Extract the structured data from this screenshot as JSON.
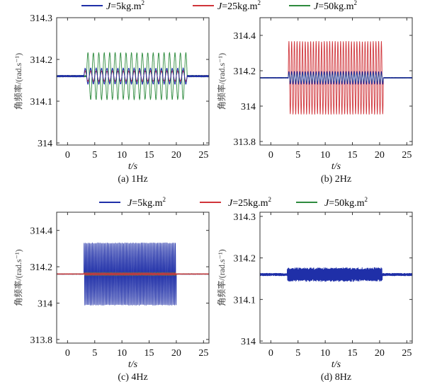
{
  "legend": {
    "entries": [
      {
        "prefix": "J",
        "label": "=5kg.m",
        "sup": "2",
        "color": "#1f2fa8"
      },
      {
        "prefix": "J",
        "label": "=25kg.m",
        "sup": "2",
        "color": "#d0343a"
      },
      {
        "prefix": "J",
        "label": "=50kg.m",
        "sup": "2",
        "color": "#2e8b3e"
      }
    ]
  },
  "chart_data": [
    {
      "type": "line",
      "caption": "(a) 1Hz",
      "xlabel": "t/s",
      "ylabel": "角频率/(rad.s⁻¹)",
      "xlim": [
        -2,
        26
      ],
      "ylim": [
        313.995,
        314.3
      ],
      "xticks": [
        0,
        5,
        10,
        15,
        20,
        25
      ],
      "yticks": [
        314,
        314.1,
        314.2,
        314.3
      ],
      "ytick_labels": [
        "314",
        "314.1",
        "314.2",
        "314.3"
      ],
      "grid": false,
      "series": [
        {
          "color": "#2e8b3e",
          "start": 3.5,
          "end": 22,
          "center": 314.16,
          "amplitude": 0.055,
          "freq_hz": 1,
          "noise": 0.004
        },
        {
          "color": "#d0343a",
          "start": 3.0,
          "end": 22,
          "center": 314.16,
          "amplitude": 0.012,
          "freq_hz": 1,
          "noise": 0.003
        },
        {
          "color": "#1f2fa8",
          "start": 3.0,
          "end": 22,
          "center": 314.16,
          "amplitude": 0.018,
          "freq_hz": 1,
          "noise": 0.004
        }
      ]
    },
    {
      "type": "line",
      "caption": "(b) 2Hz",
      "xlabel": "t/s",
      "ylabel": "角频率/(rad.s⁻¹)",
      "xlim": [
        -2,
        26
      ],
      "ylim": [
        313.78,
        314.5
      ],
      "xticks": [
        0,
        5,
        10,
        15,
        20,
        25
      ],
      "yticks": [
        313.8,
        314,
        314.2,
        314.4
      ],
      "ytick_labels": [
        "313.8",
        "314",
        "314.2",
        "314.4"
      ],
      "grid": false,
      "series": [
        {
          "color": "#d0343a",
          "start": 3.2,
          "end": 20.7,
          "center": 314.16,
          "amplitude": 0.205,
          "freq_hz": 2,
          "noise": 0.004
        },
        {
          "color": "#2e8b3e",
          "start": 3.2,
          "end": 20.7,
          "center": 314.16,
          "amplitude": 0.03,
          "freq_hz": 2,
          "noise": 0.004
        },
        {
          "color": "#1f2fa8",
          "start": 3.2,
          "end": 20.7,
          "center": 314.16,
          "amplitude": 0.035,
          "freq_hz": 2,
          "noise": 0.004
        }
      ]
    },
    {
      "type": "line",
      "caption": "(c) 4Hz",
      "xlabel": "t/s",
      "ylabel": "角频率/(rad.s⁻¹)",
      "xlim": [
        -2,
        26
      ],
      "ylim": [
        313.78,
        314.5
      ],
      "xticks": [
        0,
        5,
        10,
        15,
        20,
        25
      ],
      "yticks": [
        313.8,
        314,
        314.2,
        314.4
      ],
      "ytick_labels": [
        "313.8",
        "314",
        "314.2",
        "314.4"
      ],
      "grid": false,
      "series": [
        {
          "color": "#1f2fa8",
          "start": 3.0,
          "end": 20.0,
          "center": 314.16,
          "amplitude": 0.17,
          "freq_hz": 4,
          "noise": 0.004
        },
        {
          "color": "#2e8b3e",
          "start": 3.0,
          "end": 20.0,
          "center": 314.16,
          "amplitude": 0.008,
          "freq_hz": 4,
          "noise": 0.003
        },
        {
          "color": "#d0343a",
          "start": 3.0,
          "end": 20.0,
          "center": 314.16,
          "amplitude": 0.006,
          "freq_hz": 4,
          "noise": 0.003
        }
      ]
    },
    {
      "type": "line",
      "caption": "(d) 8Hz",
      "xlabel": "t/s",
      "ylabel": "角频率/(rad.s⁻¹)",
      "xlim": [
        -2,
        26
      ],
      "ylim": [
        313.995,
        314.31
      ],
      "xticks": [
        0,
        5,
        10,
        15,
        20,
        25
      ],
      "yticks": [
        314,
        314.1,
        314.2,
        314.3
      ],
      "ytick_labels": [
        "314",
        "314.1",
        "314.2",
        "314.3"
      ],
      "grid": false,
      "series": [
        {
          "color": "#1f2fa8",
          "start": 3.0,
          "end": 20.5,
          "center": 314.16,
          "amplitude": 0.014,
          "freq_hz": 8,
          "noise": 0.006
        }
      ]
    }
  ]
}
